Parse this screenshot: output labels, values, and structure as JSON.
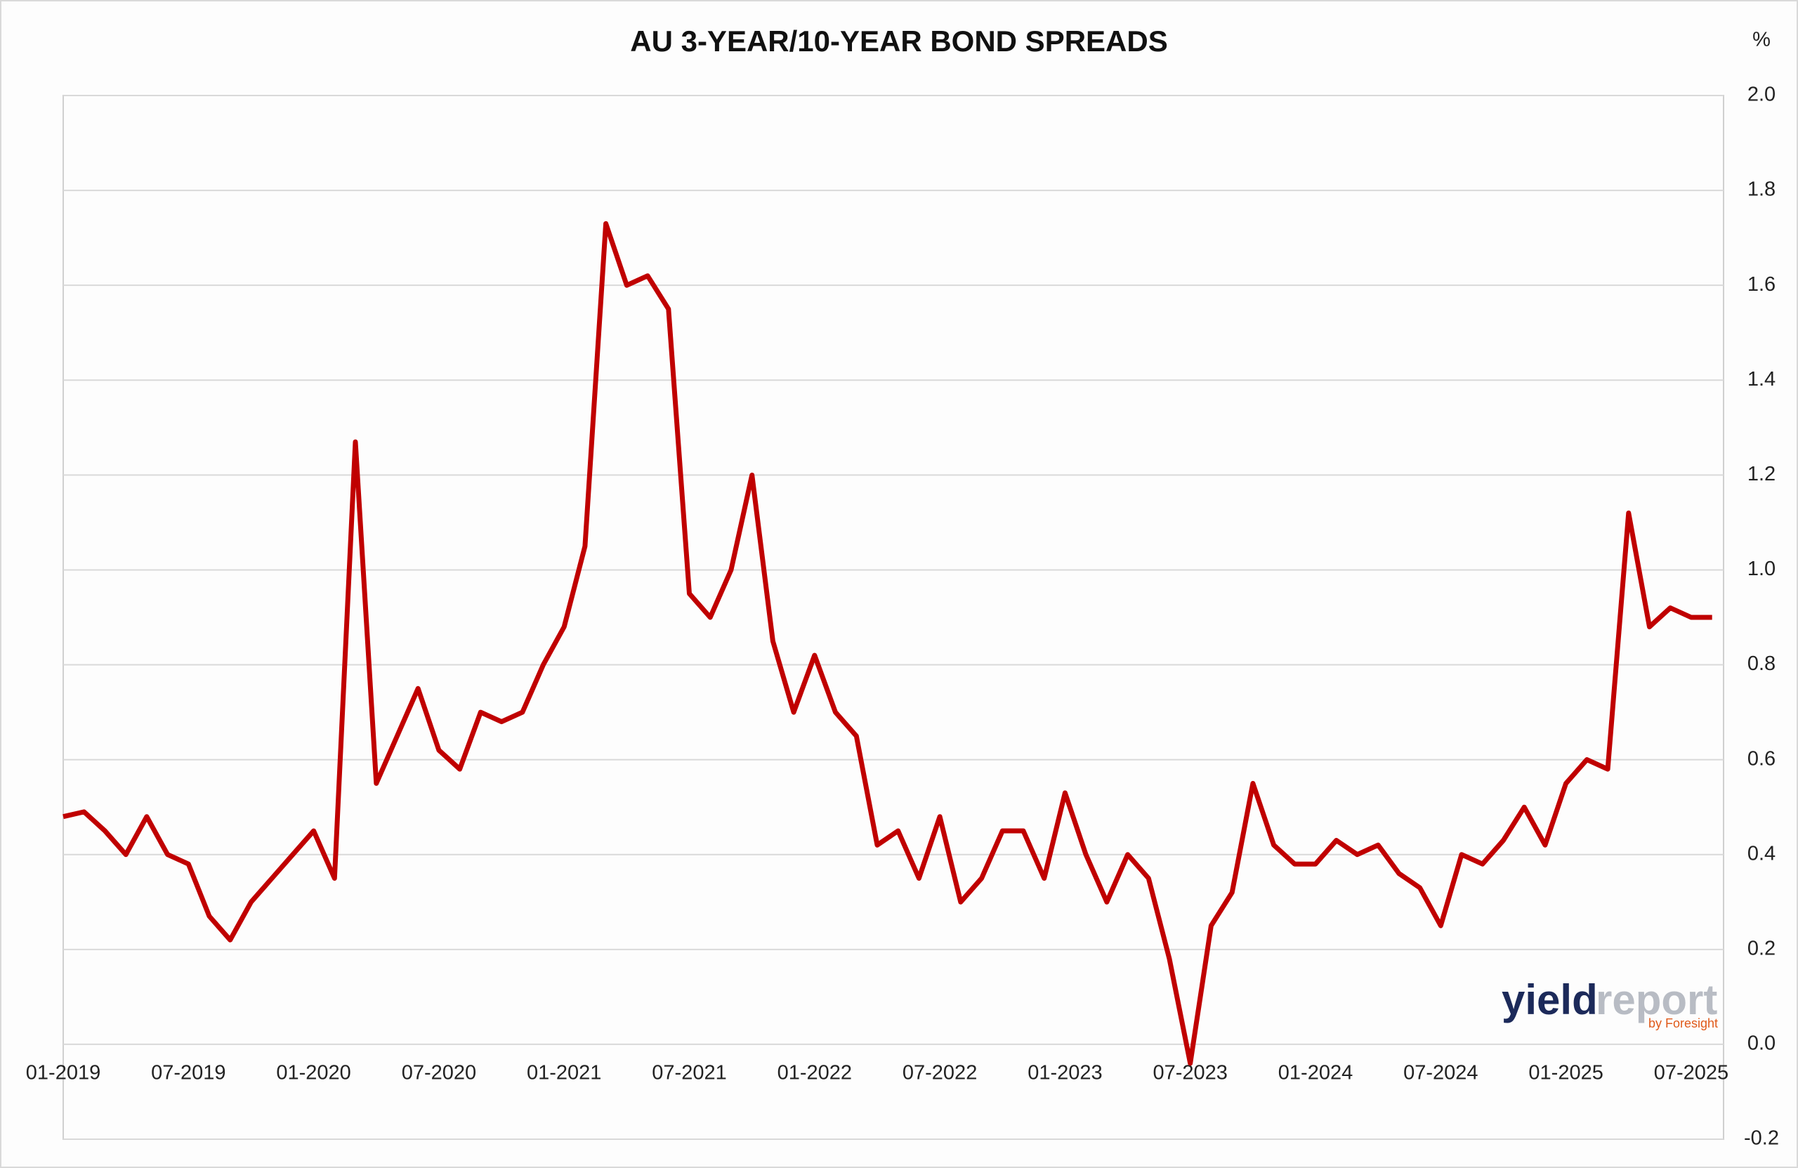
{
  "chart_data": {
    "type": "line",
    "title": "AU 3-YEAR/10-YEAR BOND SPREADS",
    "unit_label": "%",
    "x": [
      "01-2019",
      "02-2019",
      "03-2019",
      "04-2019",
      "05-2019",
      "06-2019",
      "07-2019",
      "08-2019",
      "09-2019",
      "10-2019",
      "11-2019",
      "12-2019",
      "01-2020",
      "02-2020",
      "03-2020",
      "04-2020",
      "05-2020",
      "06-2020",
      "07-2020",
      "08-2020",
      "09-2020",
      "10-2020",
      "11-2020",
      "12-2020",
      "01-2021",
      "02-2021",
      "03-2021",
      "04-2021",
      "05-2021",
      "06-2021",
      "07-2021",
      "08-2021",
      "09-2021",
      "10-2021",
      "11-2021",
      "12-2021",
      "01-2022",
      "02-2022",
      "03-2022",
      "04-2022",
      "05-2022",
      "06-2022",
      "07-2022",
      "08-2022",
      "09-2022",
      "10-2022",
      "11-2022",
      "12-2022",
      "01-2023",
      "02-2023",
      "03-2023",
      "04-2023",
      "05-2023",
      "06-2023",
      "07-2023",
      "08-2023",
      "09-2023",
      "10-2023",
      "11-2023",
      "12-2023",
      "01-2024",
      "02-2024",
      "03-2024",
      "04-2024",
      "05-2024",
      "06-2024",
      "07-2024",
      "08-2024",
      "09-2024",
      "10-2024",
      "11-2024",
      "12-2024",
      "01-2025",
      "02-2025",
      "03-2025",
      "04-2025",
      "05-2025",
      "06-2025",
      "07-2025",
      "08-2025"
    ],
    "values": [
      0.48,
      0.49,
      0.45,
      0.4,
      0.48,
      0.4,
      0.38,
      0.27,
      0.22,
      0.3,
      0.35,
      0.4,
      0.45,
      0.35,
      1.27,
      0.55,
      0.65,
      0.75,
      0.62,
      0.58,
      0.7,
      0.68,
      0.7,
      0.8,
      0.88,
      1.05,
      1.73,
      1.6,
      1.62,
      1.55,
      0.95,
      0.9,
      1.0,
      1.2,
      0.85,
      0.7,
      0.82,
      0.7,
      0.65,
      0.42,
      0.45,
      0.35,
      0.48,
      0.3,
      0.35,
      0.45,
      0.45,
      0.35,
      0.53,
      0.4,
      0.3,
      0.4,
      0.35,
      0.18,
      -0.04,
      0.25,
      0.32,
      0.55,
      0.42,
      0.38,
      0.38,
      0.43,
      0.4,
      0.42,
      0.36,
      0.33,
      0.25,
      0.4,
      0.38,
      0.43,
      0.5,
      0.42,
      0.55,
      0.6,
      0.58,
      1.12,
      0.88,
      0.92,
      0.9,
      0.9
    ],
    "color": "#c00000",
    "xticks": [
      "01-2019",
      "07-2019",
      "01-2020",
      "07-2020",
      "01-2021",
      "07-2021",
      "01-2022",
      "07-2022",
      "01-2023",
      "07-2023",
      "01-2024",
      "07-2024",
      "01-2025",
      "07-2025"
    ],
    "ylim": [
      -0.2,
      2.0
    ],
    "yticks": [
      -0.2,
      {
        "value": 0,
        "label": "0.0"
      },
      0.2,
      0.4,
      0.6,
      0.8,
      {
        "value": 1,
        "label": "1.0"
      },
      1.2,
      1.4,
      1.6,
      1.8,
      {
        "value": 2,
        "label": "2.0"
      }
    ],
    "grid": true
  },
  "watermark": {
    "brand_a": "yield",
    "brand_b": "report",
    "by": "by Foresight"
  }
}
